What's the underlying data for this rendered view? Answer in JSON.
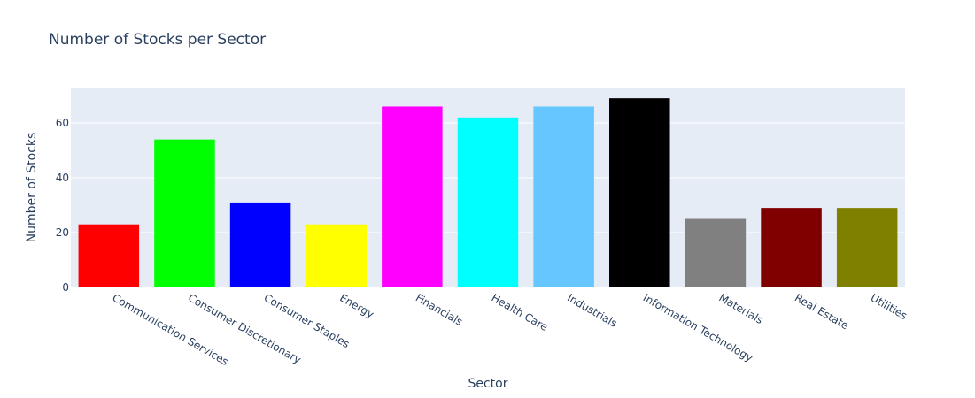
{
  "chart_data": {
    "type": "bar",
    "title": "Number of Stocks per Sector",
    "xlabel": "Sector",
    "ylabel": "Number of Stocks",
    "ylim": [
      0,
      72.6
    ],
    "yticks": [
      0,
      20,
      40,
      60
    ],
    "grid": true,
    "legend": "none",
    "categories": [
      "Communication Services",
      "Consumer Discretionary",
      "Consumer Staples",
      "Energy",
      "Financials",
      "Health Care",
      "Industrials",
      "Information Technology",
      "Materials",
      "Real Estate",
      "Utilities"
    ],
    "values": [
      23,
      54,
      31,
      23,
      66,
      62,
      66,
      69,
      25,
      29,
      29
    ],
    "colors": [
      "#ff0000",
      "#00ff00",
      "#0000ff",
      "#ffff00",
      "#ff00ff",
      "#00ffff",
      "#66c6ff",
      "#000000",
      "#808080",
      "#800000",
      "#808000"
    ],
    "plot_background": "#e5ecf6",
    "grid_color": "#ffffff",
    "text_color": "#2a3f5f"
  }
}
